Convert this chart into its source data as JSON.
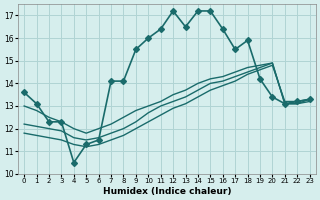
{
  "xlabel": "Humidex (Indice chaleur)",
  "ylabel": "",
  "xlim": [
    -0.5,
    23.5
  ],
  "ylim": [
    10,
    17.5
  ],
  "yticks": [
    10,
    11,
    12,
    13,
    14,
    15,
    16,
    17
  ],
  "xticks": [
    0,
    1,
    2,
    3,
    4,
    5,
    6,
    7,
    8,
    9,
    10,
    11,
    12,
    13,
    14,
    15,
    16,
    17,
    18,
    19,
    20,
    21,
    22,
    23
  ],
  "bg_color": "#d6eeed",
  "line_color": "#1a6b6b",
  "grid_color": "#b0d4d4",
  "lines": [
    {
      "x": [
        0,
        1,
        2,
        3,
        4,
        5,
        6,
        7,
        8,
        9,
        10,
        11,
        12,
        13,
        14,
        15,
        16,
        17,
        18,
        19,
        20,
        21,
        22,
        23
      ],
      "y": [
        13.6,
        13.1,
        12.3,
        12.3,
        10.5,
        11.3,
        11.5,
        14.1,
        14.1,
        15.5,
        16.0,
        16.4,
        17.2,
        16.5,
        17.2,
        17.2,
        16.4,
        15.5,
        15.9,
        14.2,
        13.4,
        13.1,
        13.2,
        13.3
      ],
      "marker": "D",
      "markersize": 3,
      "linewidth": 1.2
    },
    {
      "x": [
        0,
        1,
        2,
        3,
        4,
        5,
        6,
        7,
        8,
        9,
        10,
        11,
        12,
        13,
        14,
        15,
        16,
        17,
        18,
        19,
        20,
        21,
        22,
        23
      ],
      "y": [
        13.0,
        12.8,
        12.5,
        12.3,
        12.0,
        11.8,
        12.0,
        12.2,
        12.5,
        12.8,
        13.0,
        13.2,
        13.5,
        13.7,
        14.0,
        14.2,
        14.3,
        14.5,
        14.7,
        14.8,
        14.9,
        13.1,
        13.1,
        13.2
      ],
      "marker": null,
      "markersize": 0,
      "linewidth": 1.0
    },
    {
      "x": [
        0,
        1,
        2,
        3,
        4,
        5,
        6,
        7,
        8,
        9,
        10,
        11,
        12,
        13,
        14,
        15,
        16,
        17,
        18,
        19,
        20,
        21,
        22,
        23
      ],
      "y": [
        11.8,
        11.7,
        11.6,
        11.5,
        11.3,
        11.2,
        11.3,
        11.5,
        11.7,
        12.0,
        12.3,
        12.6,
        12.9,
        13.1,
        13.4,
        13.7,
        13.9,
        14.1,
        14.4,
        14.6,
        14.8,
        13.2,
        13.2,
        13.3
      ],
      "marker": null,
      "markersize": 0,
      "linewidth": 1.0
    },
    {
      "x": [
        0,
        1,
        2,
        3,
        4,
        5,
        6,
        7,
        8,
        9,
        10,
        11,
        12,
        13,
        14,
        15,
        16,
        17,
        18,
        19,
        20,
        21,
        22,
        23
      ],
      "y": [
        12.2,
        12.1,
        12.0,
        11.9,
        11.6,
        11.5,
        11.6,
        11.8,
        12.0,
        12.3,
        12.7,
        13.0,
        13.2,
        13.4,
        13.7,
        14.0,
        14.1,
        14.3,
        14.5,
        14.7,
        14.9,
        13.1,
        13.1,
        13.3
      ],
      "marker": null,
      "markersize": 0,
      "linewidth": 1.0
    }
  ]
}
